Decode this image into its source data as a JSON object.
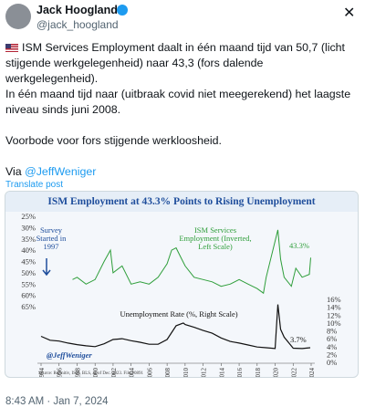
{
  "tweet": {
    "name": "Jack Hoogland",
    "handle": "@jack_hoogland",
    "paragraphs": [
      "ISM Services Employment daalt in één maand tijd van 50,7 (licht stijgende werkgelegenheid) naar 43,3 (fors dalende werkgelegenheid).",
      "In één maand tijd naar (uitbraak covid niet meegerekend) het laagste niveau sinds juni 2008.",
      "Voorbode voor fors stijgende werkloosheid."
    ],
    "via": "Via",
    "via_link": "@JeffWeniger",
    "translate": "Translate post",
    "timestamp": "8:43 AM · Jan 7, 2024"
  },
  "chart_data": {
    "type": "line",
    "title": "ISM Employment at 43.3% Points to Rising Unemployment",
    "series": [
      {
        "name": "ISM Services Employment (Inverted, Left Scale)",
        "color": "#2e9e3a",
        "axis": "y",
        "x": [
          1997.5,
          1998,
          1999,
          2000,
          2001,
          2001.7,
          2002,
          2003,
          2004,
          2005,
          2006,
          2007,
          2008,
          2008.5,
          2009,
          2009.5,
          2010,
          2011,
          2012,
          2013,
          2014,
          2015,
          2016,
          2017,
          2018,
          2018.7,
          2019,
          2020.3,
          2020.6,
          2021,
          2021.8,
          2022.3,
          2023,
          2023.8,
          2023.95
        ],
        "values": [
          53,
          52,
          55,
          53,
          45,
          40,
          50,
          47,
          55,
          54,
          55,
          52,
          46,
          40,
          39,
          43,
          47,
          52,
          53,
          54,
          56,
          55,
          53,
          55,
          57,
          59,
          52,
          31,
          44,
          52,
          56,
          48,
          52,
          50.7,
          43.3
        ]
      },
      {
        "name": "Unemployment Rate (%, Right Scale)",
        "color": "#111111",
        "axis": "y2",
        "x": [
          1994,
          1995,
          1996,
          1997,
          1998,
          1999,
          2000,
          2001,
          2002,
          2003,
          2004,
          2005,
          2006,
          2007,
          2008,
          2009,
          2009.8,
          2010,
          2011,
          2012,
          2013,
          2014,
          2015,
          2016,
          2017,
          2018,
          2019,
          2020,
          2020.3,
          2020.6,
          2021,
          2022,
          2023,
          2023.9
        ],
        "values": [
          6.6,
          5.6,
          5.4,
          4.9,
          4.5,
          4.2,
          4.0,
          4.7,
          5.8,
          6.0,
          5.5,
          5.1,
          4.6,
          4.6,
          5.8,
          9.3,
          10.0,
          9.6,
          8.9,
          8.1,
          7.4,
          6.2,
          5.3,
          4.9,
          4.4,
          3.9,
          3.7,
          3.5,
          14.7,
          8.4,
          6.4,
          3.6,
          3.5,
          3.7
        ]
      }
    ],
    "xlim": [
      1994,
      2024
    ],
    "xticks": [
      1994,
      1996,
      1998,
      2000,
      2002,
      2004,
      2006,
      2008,
      2010,
      2012,
      2014,
      2016,
      2018,
      2020,
      2022,
      2024
    ],
    "ylim": [
      65,
      25
    ],
    "yticks": [
      {
        "value": 25,
        "label": "25%"
      },
      {
        "value": 30,
        "label": "30%"
      },
      {
        "value": 35,
        "label": "35%"
      },
      {
        "value": 40,
        "label": "40%"
      },
      {
        "value": 45,
        "label": "45%"
      },
      {
        "value": 50,
        "label": "50%"
      },
      {
        "value": 55,
        "label": "55%"
      },
      {
        "value": 60,
        "label": "60%"
      },
      {
        "value": 65,
        "label": "65%"
      }
    ],
    "y2lim": [
      0,
      16
    ],
    "y2ticks": [
      {
        "value": 0,
        "label": "0%"
      },
      {
        "value": 2,
        "label": "2%"
      },
      {
        "value": 4,
        "label": "4%"
      },
      {
        "value": 6,
        "label": "6%"
      },
      {
        "value": 8,
        "label": "8%"
      },
      {
        "value": 10,
        "label": "10%"
      },
      {
        "value": 12,
        "label": "12%"
      },
      {
        "value": 14,
        "label": "14%"
      },
      {
        "value": 16,
        "label": "16%"
      }
    ],
    "annotations": {
      "survey": [
        "Survey",
        "Started in",
        "1997"
      ],
      "ism": [
        "ISM Services",
        "Employment (Inverted,",
        "Left Scale)"
      ],
      "ism_last": "43.3%",
      "unemp": "Unemployment Rate (%, Right Scale)",
      "unemp_last": "3.7%",
      "credit": "@JeffWeniger",
      "source": "Source: Refinitiv, ISM, BLS, as of Dec. 2023. File #0891"
    }
  }
}
